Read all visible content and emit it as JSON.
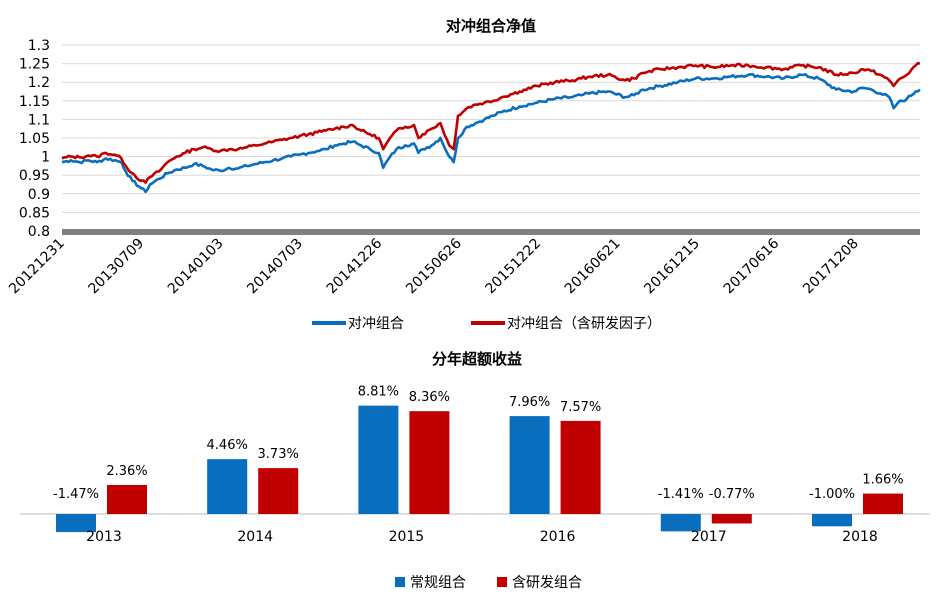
{
  "colors": {
    "blue": "#0A6EBE",
    "red": "#C00000",
    "grid": "#D9D9D9",
    "axis_band": "#808080"
  },
  "chart_data": [
    {
      "type": "line",
      "title": "对冲组合净值",
      "xlabel": "",
      "ylabel": "",
      "ylim": [
        0.8,
        1.3
      ],
      "yticks": [
        "1.3",
        "1.25",
        "1.2",
        "1.15",
        "1.1",
        "1.05",
        "1",
        "0.95",
        "0.9",
        "0.85",
        "0.8"
      ],
      "xticks": [
        "20121231",
        "20130709",
        "20140103",
        "20140703",
        "20141226",
        "20150626",
        "20151222",
        "20160621",
        "20161215",
        "20170616",
        "20171208"
      ],
      "grid": true,
      "legend_position": "bottom",
      "series": [
        {
          "name": "对冲组合",
          "color": "blue",
          "points": [
            [
              0,
              0.985
            ],
            [
              2,
              0.99
            ],
            [
              4,
              0.985
            ],
            [
              6,
              0.99
            ],
            [
              8,
              0.985
            ],
            [
              10,
              0.995
            ],
            [
              12,
              0.99
            ],
            [
              13.5,
              0.985
            ],
            [
              14.5,
              0.96
            ],
            [
              16,
              0.935
            ],
            [
              18,
              0.915
            ],
            [
              19,
              0.905
            ],
            [
              20,
              0.925
            ],
            [
              22,
              0.94
            ],
            [
              24,
              0.955
            ],
            [
              26,
              0.965
            ],
            [
              28,
              0.97
            ],
            [
              30,
              0.98
            ],
            [
              32,
              0.975
            ],
            [
              34,
              0.965
            ],
            [
              36,
              0.962
            ],
            [
              38,
              0.97
            ],
            [
              40,
              0.968
            ],
            [
              42,
              0.975
            ],
            [
              44,
              0.98
            ],
            [
              46,
              0.985
            ],
            [
              48,
              0.99
            ],
            [
              50,
              0.995
            ],
            [
              52,
              1.0
            ],
            [
              54,
              1.005
            ],
            [
              56,
              1.01
            ],
            [
              58,
              1.015
            ],
            [
              60,
              1.02
            ],
            [
              62,
              1.03
            ],
            [
              64,
              1.035
            ],
            [
              66,
              1.04
            ],
            [
              68,
              1.03
            ],
            [
              70,
              1.02
            ],
            [
              72,
              1.01
            ],
            [
              73,
              0.97
            ],
            [
              74,
              0.99
            ],
            [
              76,
              1.02
            ],
            [
              78,
              1.03
            ],
            [
              80,
              1.035
            ],
            [
              81,
              1.01
            ],
            [
              82,
              1.02
            ],
            [
              84,
              1.03
            ],
            [
              86,
              1.05
            ],
            [
              88,
              1.0
            ],
            [
              89,
              0.985
            ],
            [
              90,
              1.05
            ],
            [
              92,
              1.08
            ],
            [
              94,
              1.09
            ],
            [
              96,
              1.1
            ],
            [
              98,
              1.11
            ],
            [
              100,
              1.12
            ],
            [
              104,
              1.135
            ],
            [
              108,
              1.145
            ],
            [
              112,
              1.155
            ],
            [
              116,
              1.16
            ],
            [
              118,
              1.165
            ],
            [
              120,
              1.17
            ],
            [
              124,
              1.175
            ],
            [
              128,
              1.16
            ],
            [
              130,
              1.165
            ],
            [
              132,
              1.18
            ],
            [
              136,
              1.19
            ],
            [
              140,
              1.2
            ],
            [
              144,
              1.21
            ],
            [
              148,
              1.21
            ],
            [
              152,
              1.215
            ],
            [
              156,
              1.22
            ],
            [
              160,
              1.215
            ],
            [
              164,
              1.21
            ],
            [
              168,
              1.22
            ],
            [
              172,
              1.21
            ],
            [
              176,
              1.18
            ],
            [
              180,
              1.175
            ],
            [
              182,
              1.185
            ],
            [
              184,
              1.18
            ],
            [
              186,
              1.17
            ],
            [
              188,
              1.16
            ],
            [
              189,
              1.13
            ],
            [
              190,
              1.145
            ],
            [
              192,
              1.155
            ],
            [
              194,
              1.175
            ],
            [
              195,
              1.18
            ]
          ]
        },
        {
          "name": "对冲组合（含研发因子）",
          "color": "red",
          "points": [
            [
              0,
              0.995
            ],
            [
              2,
              1.0
            ],
            [
              4,
              0.998
            ],
            [
              6,
              1.003
            ],
            [
              8,
              1.0
            ],
            [
              10,
              1.01
            ],
            [
              12,
              1.005
            ],
            [
              13.5,
              0.995
            ],
            [
              14.5,
              0.975
            ],
            [
              16,
              0.955
            ],
            [
              18,
              0.935
            ],
            [
              19,
              0.93
            ],
            [
              20,
              0.945
            ],
            [
              22,
              0.96
            ],
            [
              24,
              0.985
            ],
            [
              26,
              1.0
            ],
            [
              28,
              1.01
            ],
            [
              30,
              1.02
            ],
            [
              32,
              1.025
            ],
            [
              34,
              1.02
            ],
            [
              36,
              1.015
            ],
            [
              38,
              1.02
            ],
            [
              40,
              1.02
            ],
            [
              42,
              1.025
            ],
            [
              44,
              1.03
            ],
            [
              46,
              1.035
            ],
            [
              48,
              1.04
            ],
            [
              50,
              1.045
            ],
            [
              52,
              1.05
            ],
            [
              54,
              1.055
            ],
            [
              56,
              1.06
            ],
            [
              58,
              1.065
            ],
            [
              60,
              1.07
            ],
            [
              62,
              1.075
            ],
            [
              64,
              1.08
            ],
            [
              66,
              1.085
            ],
            [
              68,
              1.07
            ],
            [
              70,
              1.06
            ],
            [
              72,
              1.05
            ],
            [
              73,
              1.02
            ],
            [
              74,
              1.04
            ],
            [
              76,
              1.07
            ],
            [
              78,
              1.08
            ],
            [
              80,
              1.085
            ],
            [
              81,
              1.05
            ],
            [
              82,
              1.06
            ],
            [
              84,
              1.075
            ],
            [
              86,
              1.09
            ],
            [
              88,
              1.03
            ],
            [
              89,
              1.02
            ],
            [
              90,
              1.11
            ],
            [
              92,
              1.13
            ],
            [
              94,
              1.14
            ],
            [
              96,
              1.145
            ],
            [
              98,
              1.15
            ],
            [
              100,
              1.16
            ],
            [
              104,
              1.175
            ],
            [
              108,
              1.19
            ],
            [
              112,
              1.2
            ],
            [
              116,
              1.205
            ],
            [
              118,
              1.21
            ],
            [
              120,
              1.215
            ],
            [
              124,
              1.22
            ],
            [
              128,
              1.205
            ],
            [
              130,
              1.21
            ],
            [
              132,
              1.225
            ],
            [
              136,
              1.235
            ],
            [
              140,
              1.24
            ],
            [
              144,
              1.245
            ],
            [
              148,
              1.24
            ],
            [
              152,
              1.245
            ],
            [
              156,
              1.245
            ],
            [
              160,
              1.24
            ],
            [
              164,
              1.235
            ],
            [
              168,
              1.245
            ],
            [
              172,
              1.24
            ],
            [
              176,
              1.22
            ],
            [
              180,
              1.225
            ],
            [
              182,
              1.235
            ],
            [
              184,
              1.23
            ],
            [
              186,
              1.22
            ],
            [
              188,
              1.205
            ],
            [
              189,
              1.19
            ],
            [
              190,
              1.205
            ],
            [
              192,
              1.22
            ],
            [
              194,
              1.245
            ],
            [
              195,
              1.25
            ]
          ]
        }
      ]
    },
    {
      "type": "bar",
      "title": "分年超额收益",
      "xlabel": "",
      "ylabel": "",
      "ylim": [
        -2,
        10
      ],
      "grid": false,
      "legend_position": "bottom",
      "categories": [
        "2013",
        "2014",
        "2015",
        "2016",
        "2017",
        "2018"
      ],
      "series": [
        {
          "name": "常规组合",
          "color": "blue",
          "values": [
            -1.47,
            4.46,
            8.81,
            7.96,
            -1.41,
            -1.0
          ],
          "labels": [
            "-1.47%",
            "4.46%",
            "8.81%",
            "7.96%",
            "-1.41%",
            "-1.00%"
          ]
        },
        {
          "name": "含研发组合",
          "color": "red",
          "values": [
            2.36,
            3.73,
            8.36,
            7.57,
            -0.77,
            1.66
          ],
          "labels": [
            "2.36%",
            "3.73%",
            "8.36%",
            "7.57%",
            "-0.77%",
            "1.66%"
          ]
        }
      ]
    }
  ]
}
